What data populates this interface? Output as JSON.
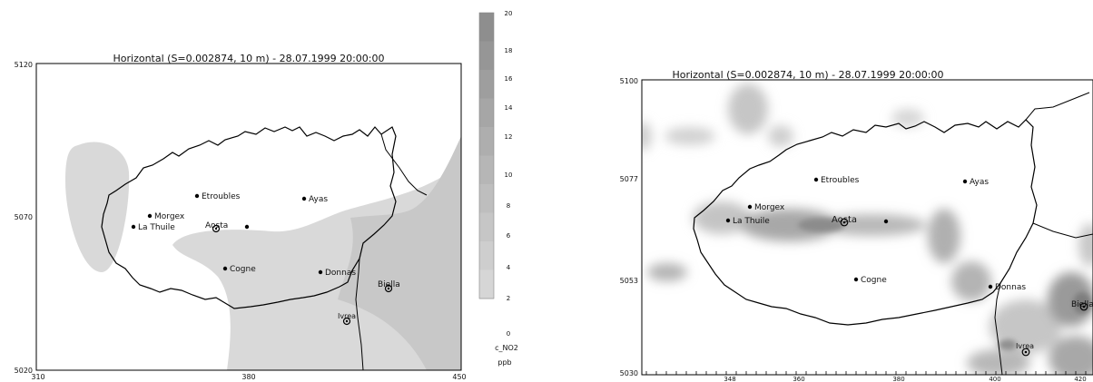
{
  "left_map": {
    "title": "Horizontal (S=0.002874, 10 m) - 28.07.1999 20:00:00",
    "y_ticks": [
      "5120",
      "5070",
      "5020"
    ],
    "x_ticks": [
      "310",
      "380",
      "450"
    ],
    "places": [
      {
        "label": "Etroubles"
      },
      {
        "label": "Ayas"
      },
      {
        "label": "Morgex"
      },
      {
        "label": "La Thuile"
      },
      {
        "label": "Aosta"
      },
      {
        "label": "Cogne"
      },
      {
        "label": "Donnas"
      },
      {
        "label": "Biella"
      },
      {
        "label": "Ivrea"
      }
    ]
  },
  "colorbar": {
    "levels": [
      "20",
      "18",
      "16",
      "14",
      "12",
      "10",
      "8",
      "6",
      "4",
      "2",
      "0"
    ],
    "variable": "c_NO2",
    "unit": "ppb",
    "colors": [
      "#8e8e8e",
      "#969696",
      "#9e9e9e",
      "#a6a6a6",
      "#aeaeae",
      "#b6b6b6",
      "#bebebe",
      "#c6c6c6",
      "#cecece",
      "#d6d6d6"
    ]
  },
  "right_map": {
    "title": "Horizontal (S=0.002874, 10 m) - 28.07.1999 20:00:00",
    "y_ticks": [
      "5100",
      "5077",
      "5053",
      "5030"
    ],
    "x_ticks": [
      "348",
      "360",
      "380",
      "400",
      "420"
    ],
    "places": [
      {
        "label": "Etroubles"
      },
      {
        "label": "Ayas"
      },
      {
        "label": "Morgex"
      },
      {
        "label": "La Thuile"
      },
      {
        "label": "Aosta"
      },
      {
        "label": "Cogne"
      },
      {
        "label": "Donnas"
      },
      {
        "label": "Biella"
      },
      {
        "label": "Ivrea"
      }
    ]
  }
}
